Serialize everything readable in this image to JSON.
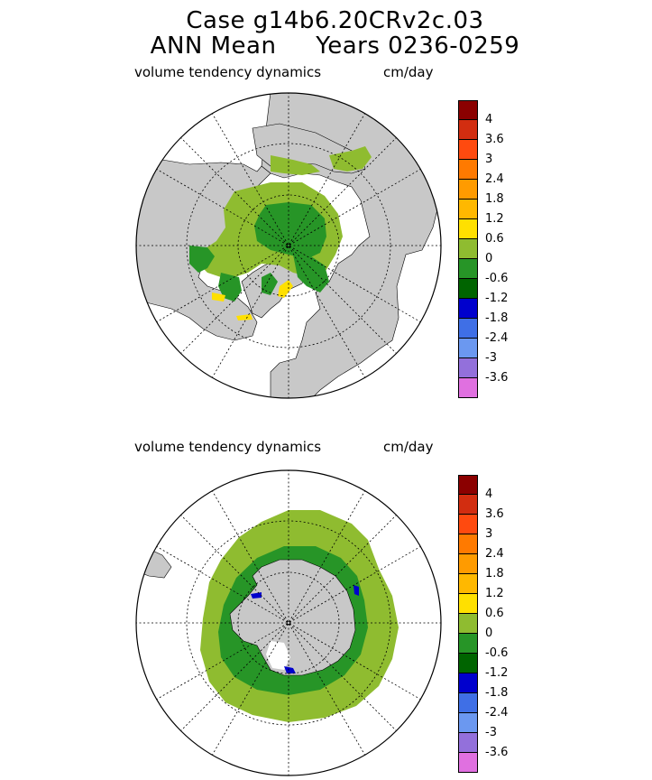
{
  "header": {
    "line1": "Case g14b6.20CRv2c.03",
    "line2": "ANN Mean     Years 0236-0259"
  },
  "panels": [
    {
      "id": "north",
      "variable": "volume tendency dynamics",
      "units": "cm/day"
    },
    {
      "id": "south",
      "variable": "volume tendency dynamics",
      "units": "cm/day"
    }
  ],
  "colorbar": {
    "colors_top_to_bottom": [
      "#8b0000",
      "#d22d10",
      "#ff4a0f",
      "#ff7a00",
      "#ff9b00",
      "#ffb800",
      "#ffe000",
      "#8fbc30",
      "#279527",
      "#006400",
      "#0000cd",
      "#3f6fe6",
      "#6b98f0",
      "#9370db",
      "#e070e0"
    ],
    "tick_labels": [
      "4",
      "3.6",
      "3",
      "2.4",
      "1.8",
      "1.2",
      "0.6",
      "0",
      "-0.6",
      "-1.2",
      "-1.8",
      "-2.4",
      "-3",
      "-3.6"
    ]
  },
  "colors": {
    "land": "#c8c8c8",
    "ice_positive": "#8fbc30",
    "ice_negative": "#279527",
    "ice_strong_negative": "#006400",
    "ice_yellow": "#ffe000",
    "ice_blue": "#0000cd"
  }
}
